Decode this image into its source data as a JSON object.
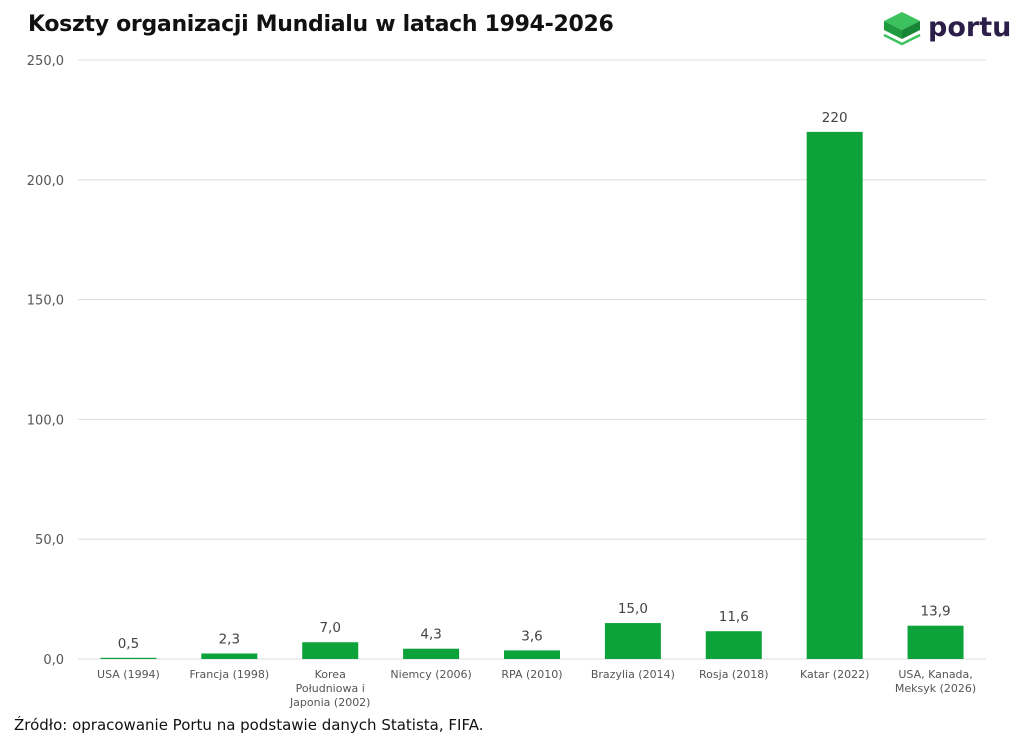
{
  "header": {
    "title": "Koszty organizacji Mundialu w latach 1994-2026",
    "logo_text": "portu"
  },
  "footer": {
    "source": "Źródło: opracowanie Portu na podstawie danych Statista, FIFA."
  },
  "colors": {
    "bar": "#0da23a",
    "grid": "#dcdcdc",
    "logo_green": "#21a844"
  },
  "chart_data": {
    "type": "bar",
    "title": "Koszty organizacji Mundialu w latach 1994-2026",
    "categories": [
      "USA (1994)",
      "Francja (1998)",
      "Korea Południowa i Japonia (2002)",
      "Niemcy (2006)",
      "RPA (2010)",
      "Brazylia (2014)",
      "Rosja (2018)",
      "Katar (2022)",
      "USA, Kanada, Meksyk (2026)"
    ],
    "category_lines": [
      [
        "USA (1994)"
      ],
      [
        "Francja (1998)"
      ],
      [
        "Korea",
        "Południowa i",
        "Japonia (2002)"
      ],
      [
        "Niemcy (2006)"
      ],
      [
        "RPA (2010)"
      ],
      [
        "Brazylia (2014)"
      ],
      [
        "Rosja (2018)"
      ],
      [
        "Katar (2022)"
      ],
      [
        "USA, Kanada,",
        "Meksyk (2026)"
      ]
    ],
    "values": [
      0.5,
      2.3,
      7.0,
      4.3,
      3.6,
      15.0,
      11.6,
      220,
      13.9
    ],
    "value_labels": [
      "0,5",
      "2,3",
      "7,0",
      "4,3",
      "3,6",
      "15,0",
      "11,6",
      "220",
      "13,9"
    ],
    "yticks": [
      0,
      50,
      100,
      150,
      200,
      250
    ],
    "ytick_labels": [
      "0,0",
      "50,0",
      "100,0",
      "150,0",
      "200,0",
      "250,0"
    ],
    "ylim": [
      0,
      250
    ],
    "xlabel": "",
    "ylabel": "",
    "grid": true,
    "legend": "none"
  }
}
